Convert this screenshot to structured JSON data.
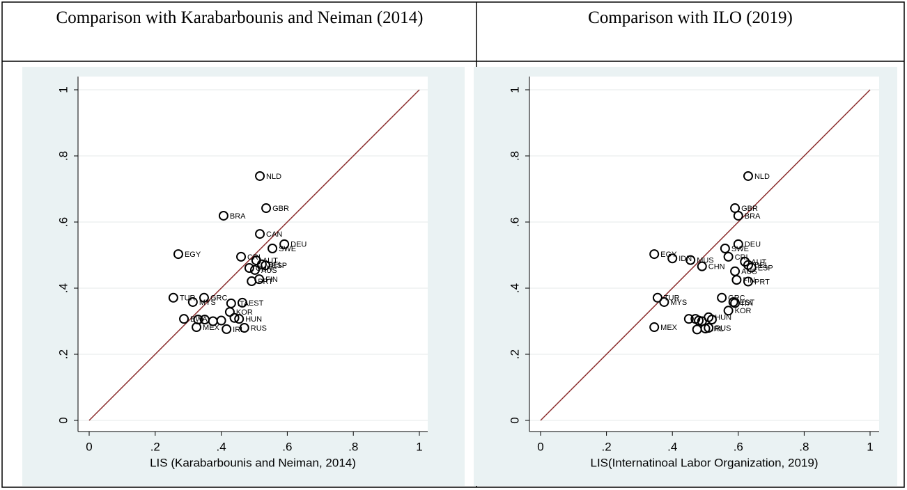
{
  "chart_data": [
    {
      "type": "scatter",
      "title": "Comparison with Karabarbounis and Neiman (2014)",
      "xlabel": "LIS (Karabarbounis and Neiman, 2014)",
      "labels": [
        "NLD",
        "GBR",
        "BRA",
        "CAN",
        "DEU",
        "SWE",
        "EGY",
        "CRI",
        "AUT",
        "BEL",
        "ESP",
        "CHN",
        "AUS",
        "FIN",
        "PRT",
        "TUR",
        "GRC",
        "MYS",
        "EST",
        "ITA",
        "KOR",
        "HUN",
        "BWA",
        "MEX",
        "IRL",
        "RUS",
        null,
        null,
        null,
        null,
        null
      ],
      "x": [
        0.517,
        0.536,
        0.407,
        0.517,
        0.591,
        0.555,
        0.27,
        0.46,
        0.506,
        0.523,
        0.534,
        0.485,
        0.502,
        0.515,
        0.492,
        0.255,
        0.348,
        0.314,
        0.464,
        0.43,
        0.426,
        0.454,
        0.287,
        0.325,
        0.416,
        0.47,
        0.33,
        0.35,
        0.375,
        0.4,
        0.44
      ],
      "y": [
        0.739,
        0.642,
        0.619,
        0.564,
        0.533,
        0.52,
        0.503,
        0.495,
        0.484,
        0.472,
        0.469,
        0.461,
        0.455,
        0.427,
        0.421,
        0.371,
        0.371,
        0.358,
        0.356,
        0.354,
        0.328,
        0.307,
        0.307,
        0.282,
        0.276,
        0.28,
        0.305,
        0.305,
        0.3,
        0.302,
        0.31
      ],
      "marker_color": "#000000",
      "reference_line_color": "#8b2c2c",
      "xlim": [
        0,
        1
      ],
      "ylim": [
        0,
        1
      ],
      "xticks": [
        0,
        {
          "value": 0.2,
          "label": ".2"
        },
        {
          "value": 0.4,
          "label": ".4"
        },
        {
          "value": 0.6,
          "label": ".6"
        },
        {
          "value": 0.8,
          "label": ".8"
        },
        1
      ],
      "yticks": [
        0,
        {
          "value": 0.2,
          "label": ".2"
        },
        {
          "value": 0.4,
          "label": ".4"
        },
        {
          "value": 0.6,
          "label": ".6"
        },
        {
          "value": 0.8,
          "label": ".8"
        },
        1
      ],
      "grid": true
    },
    {
      "type": "scatter",
      "title": "Comparison with ILO (2019)",
      "xlabel": "LIS(Internatinoal Labor Organization, 2019)",
      "labels": [
        "NLD",
        "GBR",
        "BRA",
        "DEU",
        "SWE",
        "EGY",
        "IDN",
        "MUS",
        "CHN",
        "CRI",
        "AUT",
        "BEL",
        "ESP",
        "AUS",
        "FIN",
        "PRT",
        "TUR",
        "MYS",
        "GRC",
        "EST",
        "ITA",
        "KOR",
        "HUN",
        "MEX",
        "IRL",
        "RUS",
        null,
        null,
        null,
        null,
        null,
        null
      ],
      "x": [
        0.63,
        0.59,
        0.6,
        0.6,
        0.56,
        0.345,
        0.4,
        0.455,
        0.49,
        0.57,
        0.62,
        0.63,
        0.64,
        0.59,
        0.595,
        0.63,
        0.355,
        0.375,
        0.55,
        0.585,
        0.59,
        0.57,
        0.51,
        0.345,
        0.5,
        0.51,
        0.45,
        0.47,
        0.48,
        0.49,
        0.52,
        0.475
      ],
      "y": [
        0.739,
        0.642,
        0.619,
        0.533,
        0.52,
        0.503,
        0.49,
        0.485,
        0.466,
        0.495,
        0.48,
        0.47,
        0.462,
        0.451,
        0.425,
        0.42,
        0.371,
        0.358,
        0.371,
        0.358,
        0.355,
        0.332,
        0.312,
        0.282,
        0.278,
        0.28,
        0.307,
        0.307,
        0.302,
        0.3,
        0.305,
        0.275
      ],
      "marker_color": "#000000",
      "reference_line_color": "#8b2c2c",
      "xlim": [
        0,
        1
      ],
      "ylim": [
        0,
        1
      ],
      "xticks": [
        0,
        {
          "value": 0.2,
          "label": ".2"
        },
        {
          "value": 0.4,
          "label": ".4"
        },
        {
          "value": 0.6,
          "label": ".6"
        },
        {
          "value": 0.8,
          "label": ".8"
        },
        1
      ],
      "yticks": [
        0,
        {
          "value": 0.2,
          "label": ".2"
        },
        {
          "value": 0.4,
          "label": ".4"
        },
        {
          "value": 0.6,
          "label": ".6"
        },
        {
          "value": 0.8,
          "label": ".8"
        },
        1
      ],
      "grid": true
    }
  ]
}
